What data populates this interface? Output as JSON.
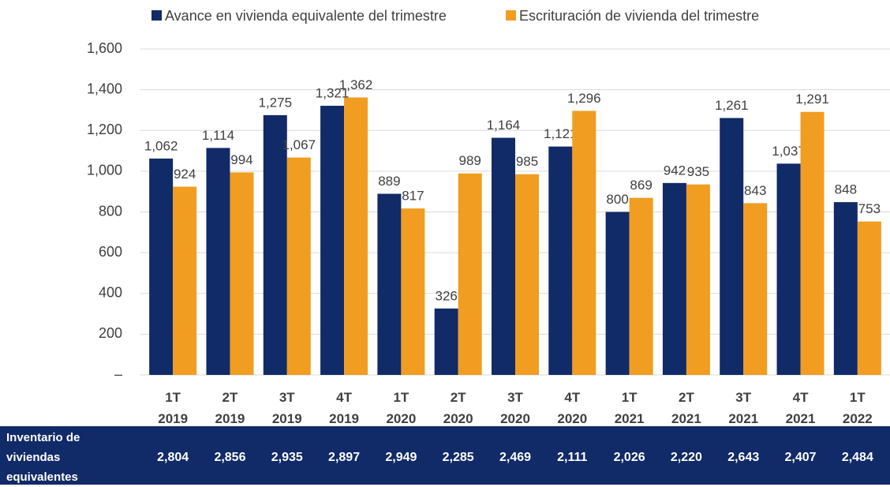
{
  "chart_data": {
    "type": "bar",
    "categories": [
      "1T 2019",
      "2T 2019",
      "3T 2019",
      "4T 2019",
      "1T 2020",
      "2T 2020",
      "3T 2020",
      "4T 2020",
      "1T 2021",
      "2T 2021",
      "3T 2021",
      "4T 2021",
      "1T 2022"
    ],
    "series": [
      {
        "name": "Avance en vivienda equivalente del trimestre",
        "color": "#112a68",
        "values": [
          1062,
          1114,
          1275,
          1321,
          889,
          326,
          1164,
          1121,
          800,
          942,
          1261,
          1037,
          848
        ],
        "value_labels": [
          "1,062",
          "1,114",
          "1,275",
          "1,321",
          "889",
          "326",
          "1,164",
          "1,121",
          "800",
          "942",
          "1,261",
          "1,037",
          "848"
        ]
      },
      {
        "name": "Escrituración de vivienda del trimestre",
        "color": "#f09d22",
        "values": [
          924,
          994,
          1067,
          1362,
          817,
          989,
          985,
          1296,
          869,
          935,
          843,
          1291,
          753
        ],
        "value_labels": [
          "924",
          "994",
          "1,067",
          "1,362",
          "817",
          "989",
          "985",
          "1,296",
          "869",
          "935",
          "843",
          "1,291",
          "753"
        ]
      }
    ],
    "ylim": [
      0,
      1600
    ],
    "yticks": [
      {
        "value": 0,
        "label": "–"
      },
      {
        "value": 200,
        "label": "200"
      },
      {
        "value": 400,
        "label": "400"
      },
      {
        "value": 600,
        "label": "600"
      },
      {
        "value": 800,
        "label": "800"
      },
      {
        "value": 1000,
        "label": "1,000"
      },
      {
        "value": 1200,
        "label": "1,200"
      },
      {
        "value": 1400,
        "label": "1,400"
      },
      {
        "value": 1600,
        "label": "1,600"
      }
    ],
    "grid": true,
    "table": {
      "label": "Inventario de viviendas equivalentes",
      "values": [
        2804,
        2856,
        2935,
        2897,
        2949,
        2285,
        2469,
        2111,
        2026,
        2220,
        2643,
        2407,
        2484
      ],
      "value_labels": [
        "2,804",
        "2,856",
        "2,935",
        "2,897",
        "2,949",
        "2,285",
        "2,469",
        "2,111",
        "2,026",
        "2,220",
        "2,643",
        "2,407",
        "2,484"
      ]
    }
  }
}
